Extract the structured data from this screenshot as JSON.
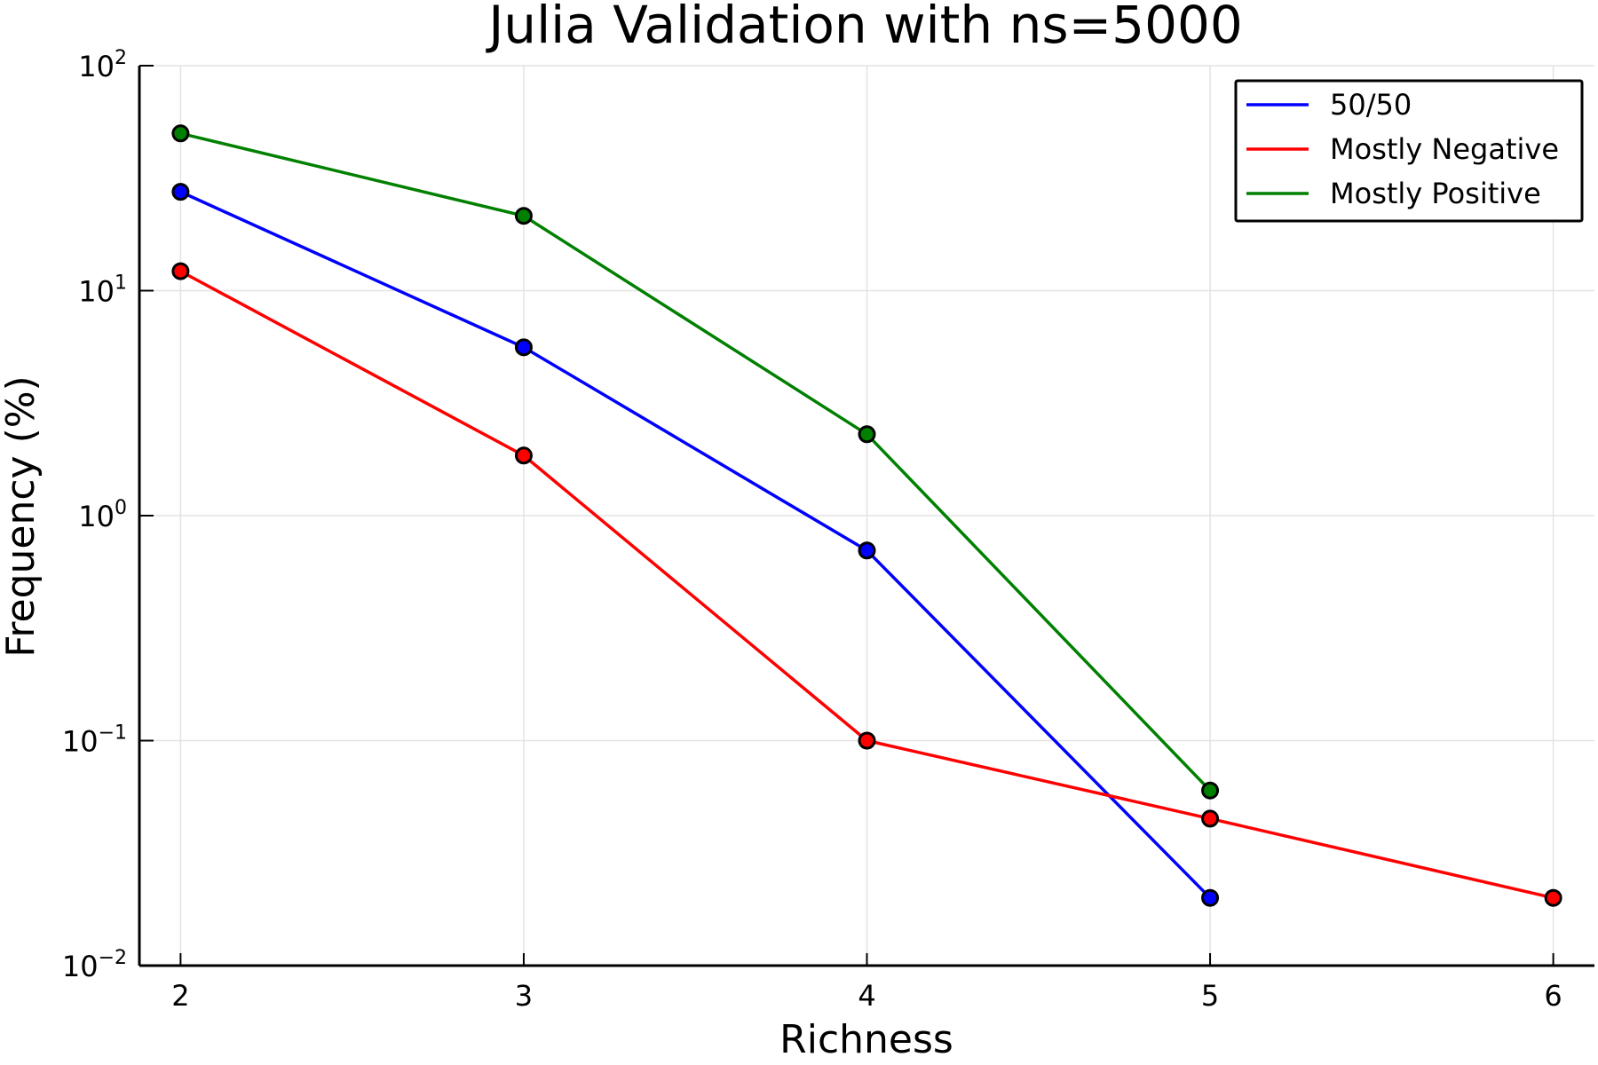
{
  "chart_data": {
    "type": "line",
    "title": "Julia Validation with ns=5000",
    "xlabel": "Richness",
    "ylabel": "Frequency (%)",
    "yscale": "log10",
    "xlim": [
      1.88,
      6.12
    ],
    "ylim": [
      0.01,
      100
    ],
    "xticks": [
      2,
      3,
      4,
      5,
      6
    ],
    "yticks": [
      {
        "value": 100,
        "base": "10",
        "exp": "2"
      },
      {
        "value": 10,
        "base": "10",
        "exp": "1"
      },
      {
        "value": 1,
        "base": "10",
        "exp": "0"
      },
      {
        "value": 0.1,
        "base": "10",
        "exp": "−1"
      },
      {
        "value": 0.01,
        "base": "10",
        "exp": "−2"
      }
    ],
    "grid": true,
    "legend_position": "top-right",
    "series": [
      {
        "name": "50/50",
        "color": "#0000ff",
        "x": [
          2,
          3,
          4,
          5
        ],
        "y": [
          27.5,
          5.6,
          0.7,
          0.02
        ]
      },
      {
        "name": "Mostly Negative",
        "color": "#ff0000",
        "x": [
          2,
          3,
          4,
          5,
          6
        ],
        "y": [
          12.2,
          1.85,
          0.1,
          0.045,
          0.02
        ]
      },
      {
        "name": "Mostly Positive",
        "color": "#008000",
        "x": [
          2,
          3,
          4,
          5
        ],
        "y": [
          50,
          21.5,
          2.3,
          0.06
        ]
      }
    ]
  }
}
